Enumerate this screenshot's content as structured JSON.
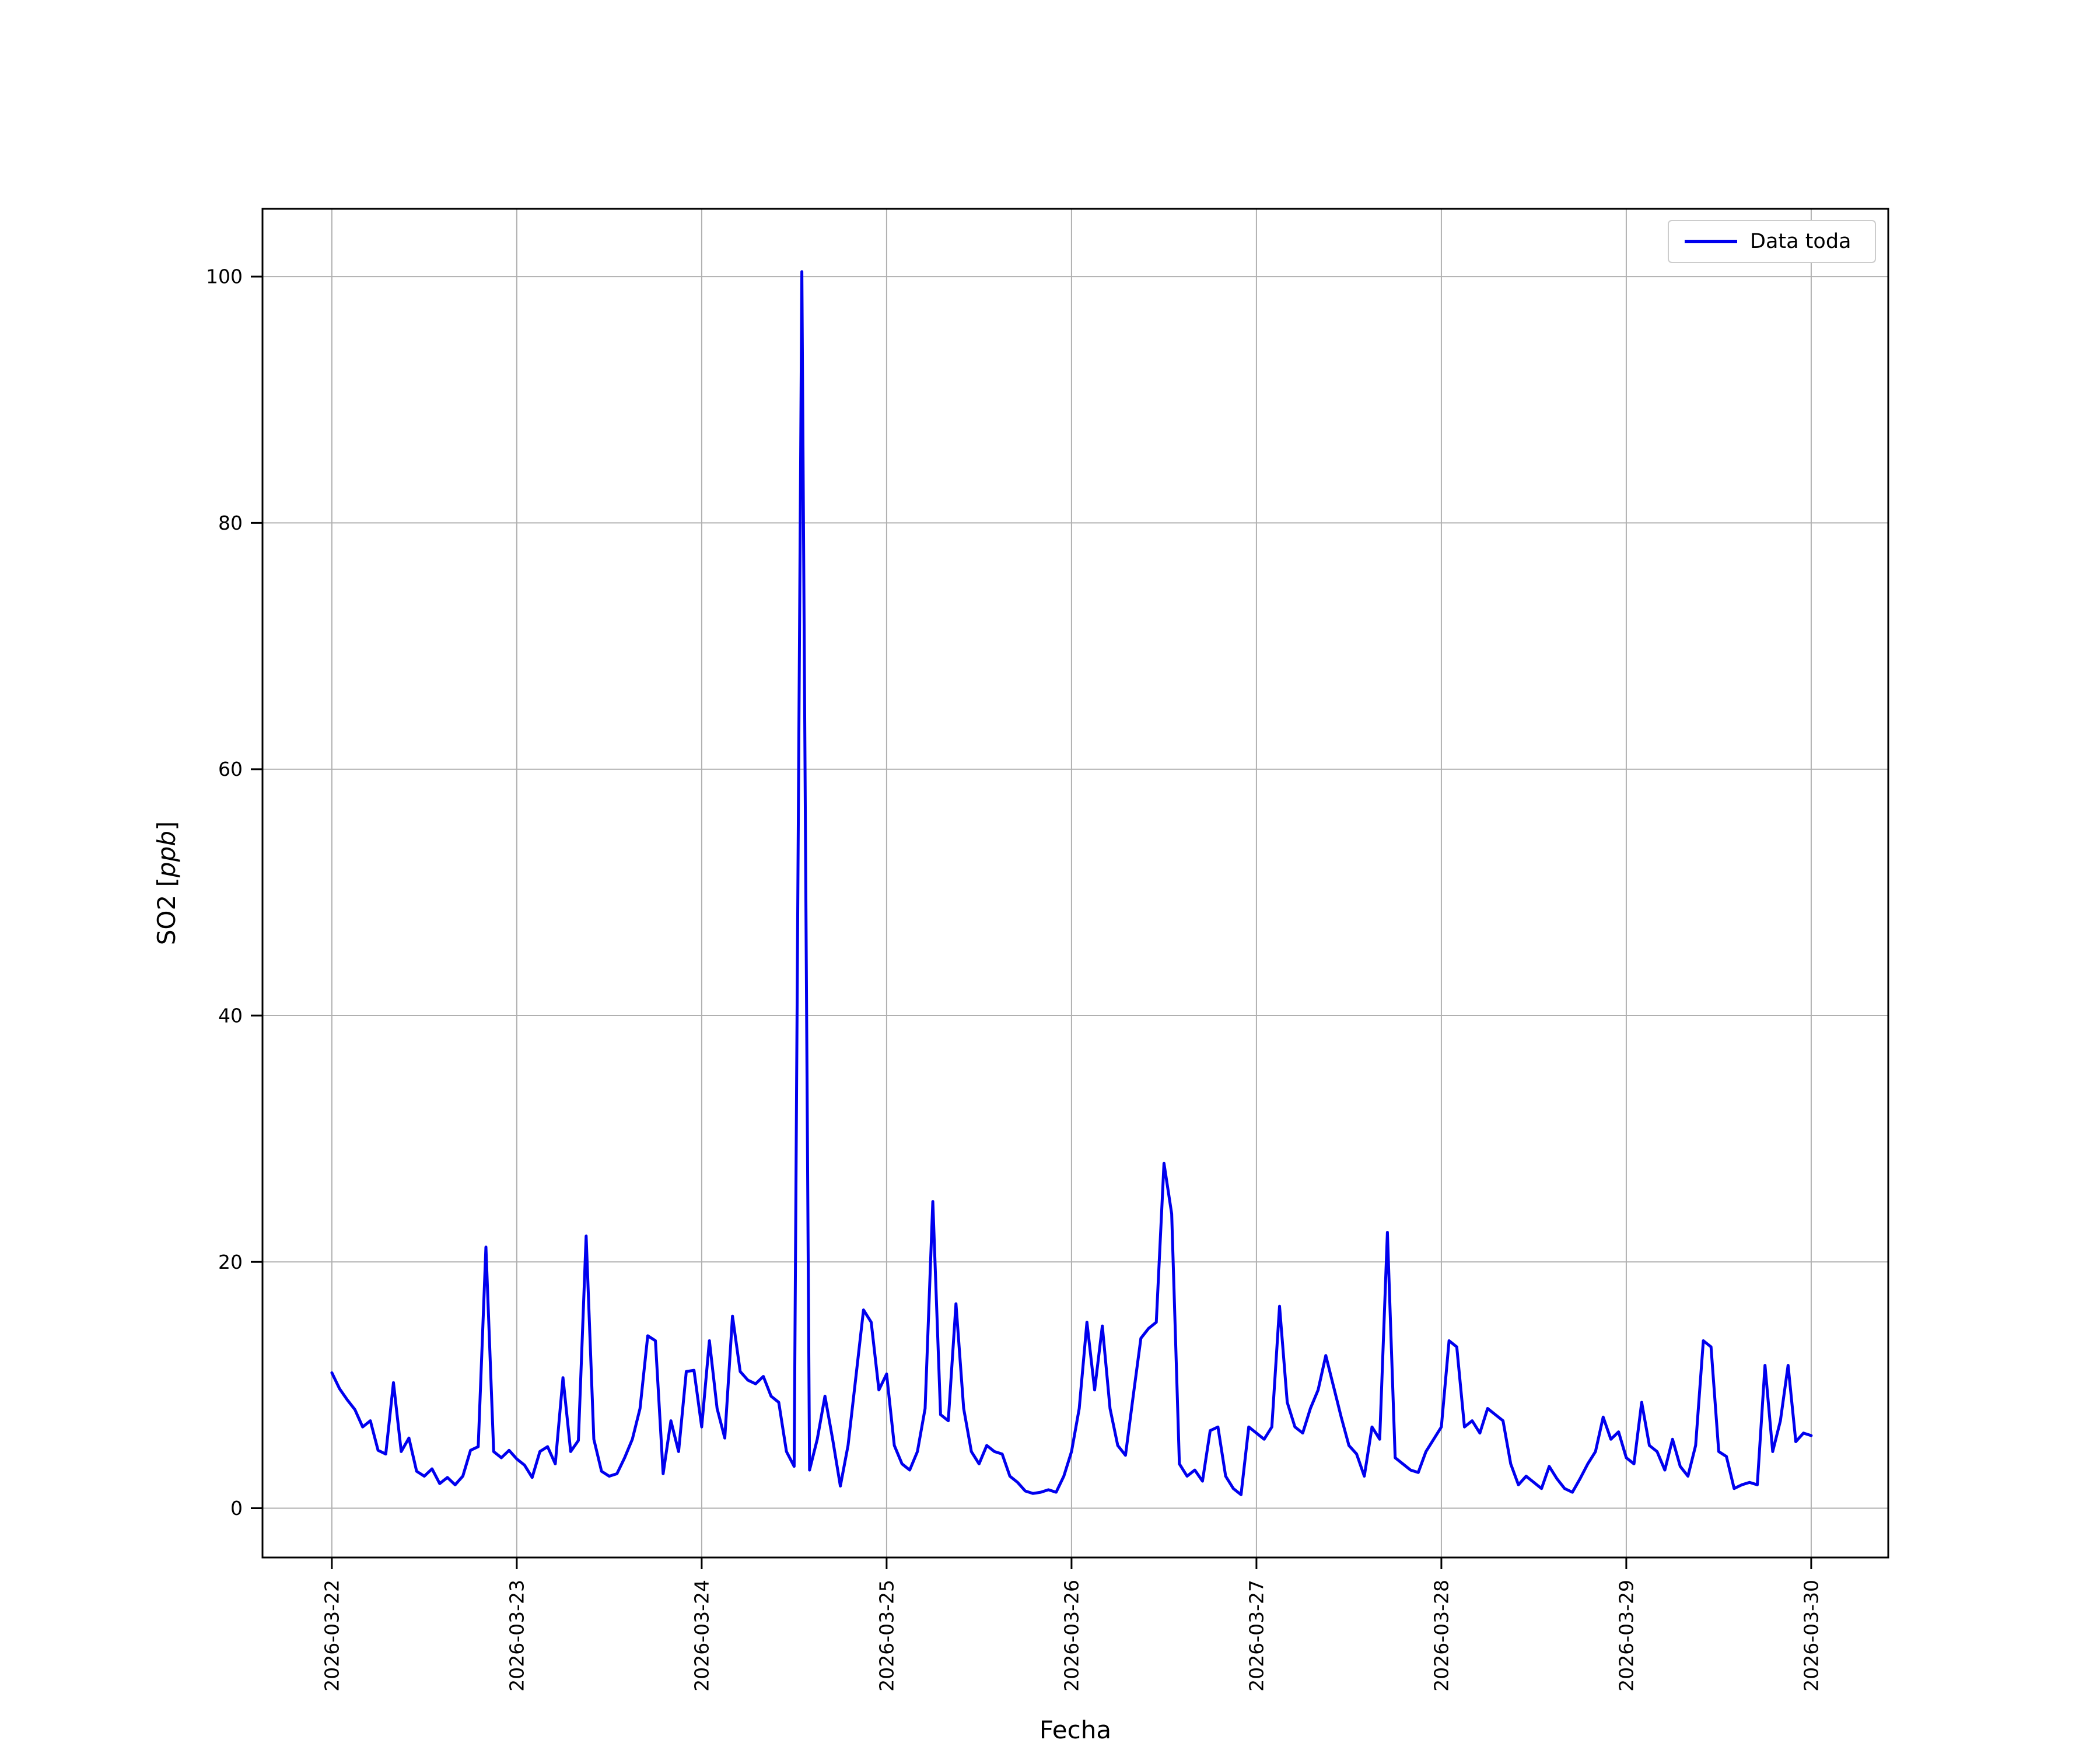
{
  "chart_data": {
    "type": "line",
    "title": "",
    "xlabel": "Fecha",
    "ylabel": "SO2 [ppb]",
    "ylabel_parts": {
      "prefix": "SO2 [",
      "italic": "ppb",
      "suffix": "]"
    },
    "grid": true,
    "legend_position": "upper right",
    "legend_entries": [
      {
        "label": "Data toda",
        "color": "#0000ee"
      }
    ],
    "x_tick_labels": [
      "2026-03-22",
      "2026-03-23",
      "2026-03-24",
      "2026-03-25",
      "2026-03-26",
      "2026-03-27",
      "2026-03-28",
      "2026-03-29",
      "2026-03-30"
    ],
    "x_tick_hours": [
      0,
      24,
      48,
      72,
      96,
      120,
      144,
      168,
      192
    ],
    "y_ticks": [
      0,
      20,
      40,
      60,
      80,
      100
    ],
    "xlim_hours": [
      -9,
      202
    ],
    "ylim": [
      -4,
      105.5
    ],
    "series": [
      {
        "name": "Data toda",
        "color": "#0000ee",
        "x_start": "2026-03-22 00:00",
        "x_step_hours": 1,
        "values": [
          11.0,
          9.7,
          8.8,
          8.0,
          6.6,
          7.1,
          4.7,
          4.4,
          10.2,
          4.6,
          5.7,
          3.0,
          2.6,
          3.2,
          2.0,
          2.5,
          1.9,
          2.6,
          4.7,
          5.0,
          21.2,
          4.6,
          4.1,
          4.7,
          4.0,
          3.5,
          2.5,
          4.6,
          5.0,
          3.6,
          10.6,
          4.6,
          5.5,
          22.1,
          5.6,
          3.0,
          2.6,
          2.8,
          4.1,
          5.6,
          8.1,
          14.0,
          13.6,
          2.8,
          7.1,
          4.6,
          11.1,
          11.2,
          6.6,
          13.6,
          8.1,
          5.7,
          15.6,
          11.1,
          10.4,
          10.1,
          10.7,
          9.1,
          8.6,
          4.6,
          3.4,
          100.4,
          3.1,
          5.6,
          9.1,
          5.6,
          1.8,
          5.1,
          10.6,
          16.1,
          15.1,
          9.6,
          10.9,
          5.1,
          3.6,
          3.1,
          4.6,
          8.1,
          24.9,
          7.6,
          7.1,
          16.6,
          8.1,
          4.6,
          3.6,
          5.1,
          4.6,
          4.4,
          2.6,
          2.1,
          1.4,
          1.2,
          1.3,
          1.5,
          1.3,
          2.6,
          4.6,
          8.1,
          15.1,
          9.6,
          14.8,
          8.1,
          5.1,
          4.3,
          9.1,
          13.8,
          14.6,
          15.1,
          28.0,
          23.9,
          3.6,
          2.6,
          3.1,
          2.2,
          6.3,
          6.6,
          2.6,
          1.6,
          1.1,
          6.6,
          6.1,
          5.6,
          6.6,
          16.4,
          8.6,
          6.6,
          6.1,
          8.1,
          9.6,
          12.4,
          9.9,
          7.4,
          5.1,
          4.4,
          2.6,
          6.6,
          5.6,
          22.4,
          4.1,
          3.6,
          3.1,
          2.9,
          4.6,
          5.6,
          6.6,
          13.6,
          13.1,
          6.6,
          7.1,
          6.1,
          8.1,
          7.6,
          7.1,
          3.6,
          1.9,
          2.6,
          2.1,
          1.6,
          3.4,
          2.4,
          1.6,
          1.3,
          2.4,
          3.6,
          4.6,
          7.4,
          5.6,
          6.2,
          4.1,
          3.6,
          8.6,
          5.1,
          4.6,
          3.1,
          5.6,
          3.4,
          2.6,
          5.1,
          13.6,
          13.1,
          4.6,
          4.2,
          1.6,
          1.9,
          2.1,
          1.9,
          11.6,
          4.6,
          7.1,
          11.6,
          5.4,
          6.1,
          5.9
        ]
      }
    ]
  }
}
